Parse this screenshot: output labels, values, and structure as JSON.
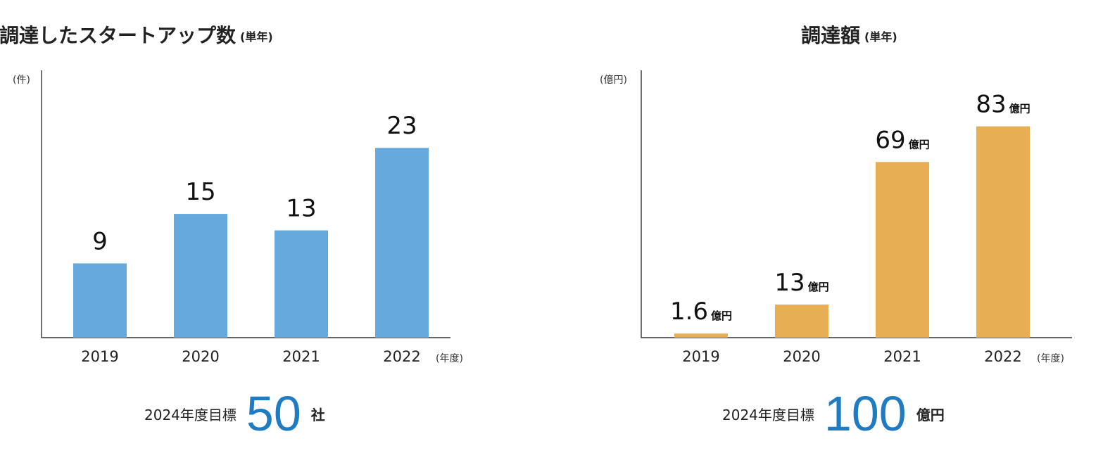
{
  "chart_data": [
    {
      "type": "bar",
      "title": "資金調達したスタートアップ数",
      "subtitle": "(単年)",
      "ylabel": "(件)",
      "xlabel": "(年度)",
      "categories": [
        "2019",
        "2020",
        "2021",
        "2022"
      ],
      "values": [
        9,
        15,
        13,
        23
      ],
      "value_labels": [
        "9",
        "15",
        "13",
        "23"
      ],
      "value_unit": "",
      "ylim": [
        0,
        32.4
      ],
      "bar_color": "#66a9dc",
      "grid": false,
      "target": {
        "label": "2024年度目標",
        "value": "50",
        "unit": "社",
        "color": "#1f7cc2"
      }
    },
    {
      "type": "bar",
      "title": "調達額",
      "subtitle": "(単年)",
      "ylabel": "(億円)",
      "xlabel": "(年度)",
      "categories": [
        "2019",
        "2020",
        "2021",
        "2022"
      ],
      "values": [
        1.6,
        13,
        69,
        83
      ],
      "value_labels": [
        "1.6",
        "13",
        "69",
        "83"
      ],
      "value_unit": "億円",
      "ylim": [
        0,
        105
      ],
      "bar_color": "#e8ae53",
      "grid": false,
      "target": {
        "label": "2024年度目標",
        "value": "100",
        "unit": "億円",
        "color": "#1f7cc2"
      }
    }
  ]
}
